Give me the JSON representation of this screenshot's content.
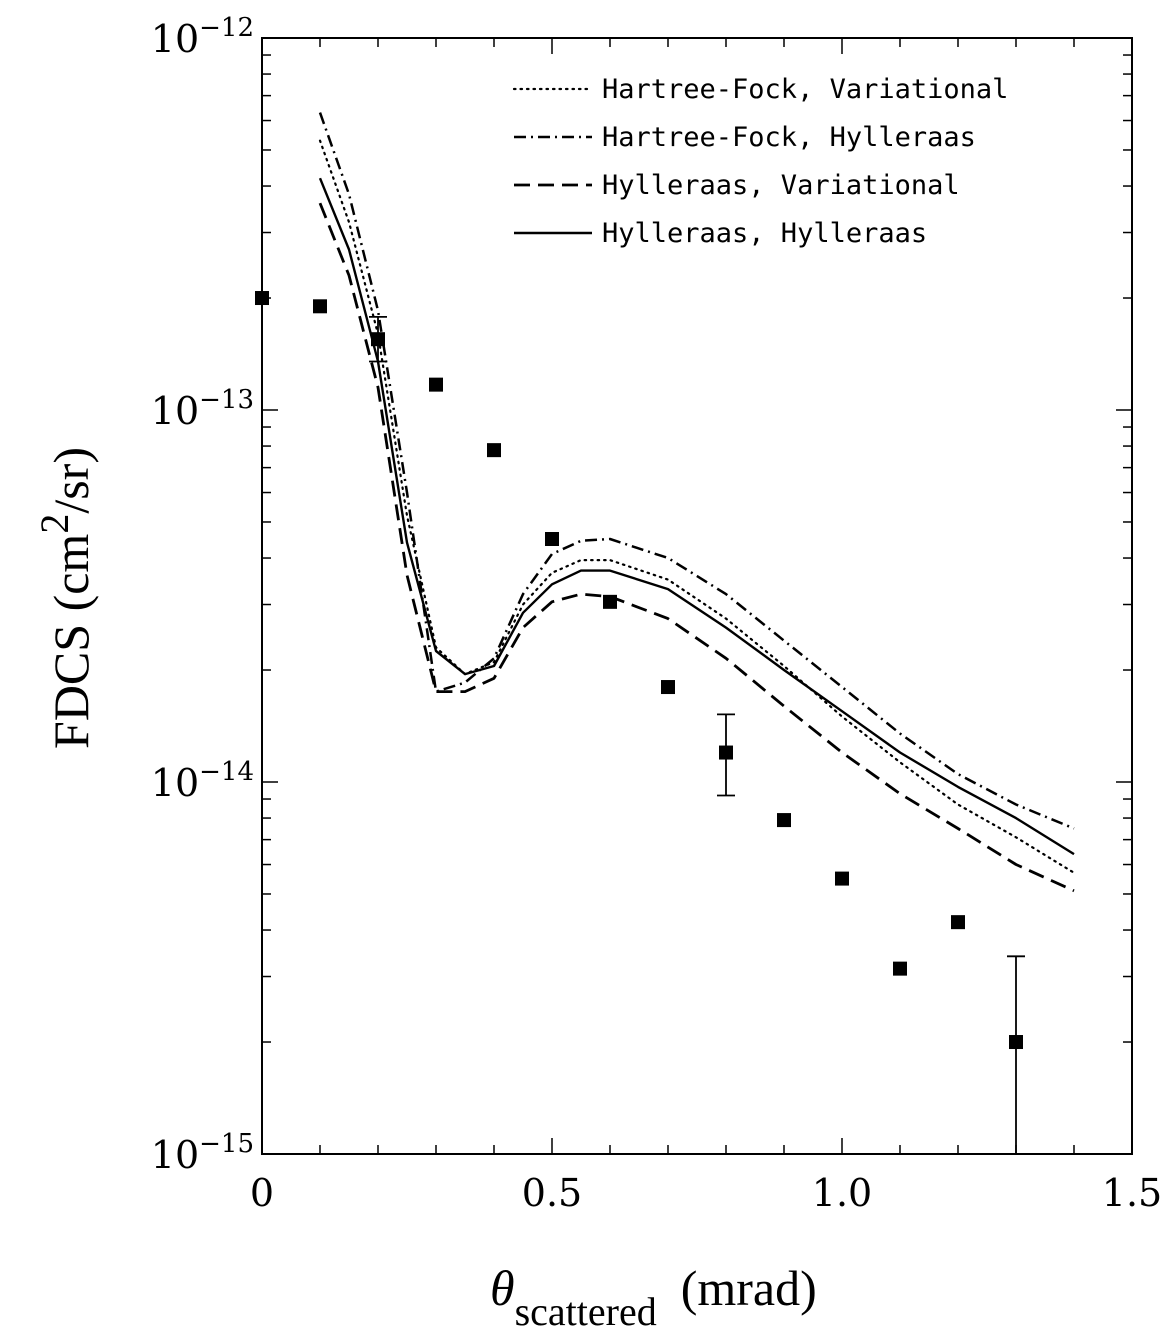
{
  "chart_data": {
    "type": "line",
    "xlabel": {
      "symbol": "θ",
      "subscript": "scattered",
      "unit": "(mrad)"
    },
    "ylabel": {
      "prefix": "FDCS (cm",
      "superscript": "2",
      "suffix": "/sr)"
    },
    "xlim": [
      0,
      1.5
    ],
    "ylim": [
      1e-15,
      1e-12
    ],
    "yscale": "log",
    "xticks": [
      {
        "value": 0,
        "label": "0"
      },
      {
        "value": 0.5,
        "label": "0.5"
      },
      {
        "value": 1.0,
        "label": "1.0"
      },
      {
        "value": 1.5,
        "label": "1.5"
      }
    ],
    "yticks": [
      {
        "value": 1e-15,
        "base": "10",
        "exp": "−15"
      },
      {
        "value": 1e-14,
        "base": "10",
        "exp": "−14"
      },
      {
        "value": 1e-13,
        "base": "10",
        "exp": "−13"
      },
      {
        "value": 1e-12,
        "base": "10",
        "exp": "−12"
      }
    ],
    "grid": false,
    "legend_position": "top-right",
    "series": [
      {
        "name": "Hartree-Fock, Variational",
        "dash": "dotted",
        "x": [
          0.1,
          0.15,
          0.2,
          0.25,
          0.3,
          0.35,
          0.4,
          0.45,
          0.5,
          0.55,
          0.6,
          0.7,
          0.8,
          0.9,
          1.0,
          1.1,
          1.2,
          1.3,
          1.4
        ],
        "y": [
          5.3e-13,
          3.2e-13,
          1.6e-13,
          5.2e-14,
          2.3e-14,
          1.95e-14,
          2.1e-14,
          3e-14,
          3.65e-14,
          3.95e-14,
          3.95e-14,
          3.5e-14,
          2.75e-14,
          2.05e-14,
          1.5e-14,
          1.13e-14,
          8.7e-15,
          7.1e-15,
          5.7e-15
        ]
      },
      {
        "name": "Hartree-Fock, Hylleraas",
        "dash": "dash-dot",
        "x": [
          0.1,
          0.15,
          0.2,
          0.25,
          0.3,
          0.35,
          0.4,
          0.45,
          0.5,
          0.55,
          0.6,
          0.7,
          0.8,
          0.9,
          1.0,
          1.1,
          1.2,
          1.3,
          1.4
        ],
        "y": [
          6.3e-13,
          3.8e-13,
          1.85e-13,
          6e-14,
          1.75e-14,
          1.85e-14,
          2.15e-14,
          3.2e-14,
          4.1e-14,
          4.45e-14,
          4.5e-14,
          4e-14,
          3.2e-14,
          2.4e-14,
          1.8e-14,
          1.35e-14,
          1.05e-14,
          8.7e-15,
          7.5e-15
        ]
      },
      {
        "name": "Hylleraas, Variational",
        "dash": "dashed",
        "x": [
          0.1,
          0.15,
          0.2,
          0.25,
          0.3,
          0.35,
          0.4,
          0.45,
          0.5,
          0.55,
          0.6,
          0.7,
          0.8,
          0.9,
          1.0,
          1.1,
          1.2,
          1.3,
          1.4
        ],
        "y": [
          3.6e-13,
          2.3e-13,
          1.15e-13,
          3.6e-14,
          1.75e-14,
          1.75e-14,
          1.9e-14,
          2.6e-14,
          3.05e-14,
          3.2e-14,
          3.15e-14,
          2.75e-14,
          2.15e-14,
          1.6e-14,
          1.2e-14,
          9.3e-15,
          7.5e-15,
          6e-15,
          5.1e-15
        ]
      },
      {
        "name": "Hylleraas, Hylleraas",
        "dash": "solid",
        "x": [
          0.1,
          0.15,
          0.2,
          0.25,
          0.3,
          0.35,
          0.4,
          0.45,
          0.5,
          0.55,
          0.6,
          0.7,
          0.8,
          0.9,
          1.0,
          1.1,
          1.2,
          1.3,
          1.4
        ],
        "y": [
          4.2e-13,
          2.7e-13,
          1.35e-13,
          4.4e-14,
          2.25e-14,
          1.95e-14,
          2.05e-14,
          2.85e-14,
          3.4e-14,
          3.7e-14,
          3.7e-14,
          3.3e-14,
          2.6e-14,
          2e-14,
          1.55e-14,
          1.2e-14,
          9.7e-15,
          8e-15,
          6.4e-15
        ]
      }
    ],
    "experimental": {
      "marker": "square",
      "points": [
        {
          "x": 0.0,
          "y": 2e-13
        },
        {
          "x": 0.1,
          "y": 1.9e-13
        },
        {
          "x": 0.2,
          "y": 1.55e-13,
          "err": [
            1.35e-13,
            1.78e-13
          ]
        },
        {
          "x": 0.3,
          "y": 1.17e-13
        },
        {
          "x": 0.4,
          "y": 7.8e-14
        },
        {
          "x": 0.5,
          "y": 4.5e-14
        },
        {
          "x": 0.6,
          "y": 3.05e-14
        },
        {
          "x": 0.7,
          "y": 1.8e-14
        },
        {
          "x": 0.8,
          "y": 1.2e-14,
          "err": [
            9.2e-15,
            1.52e-14
          ]
        },
        {
          "x": 0.9,
          "y": 7.9e-15
        },
        {
          "x": 1.0,
          "y": 5.5e-15
        },
        {
          "x": 1.1,
          "y": 3.15e-15
        },
        {
          "x": 1.2,
          "y": 4.2e-15
        },
        {
          "x": 1.3,
          "y": 2e-15,
          "err": [
            1e-15,
            3.4e-15
          ]
        }
      ]
    }
  }
}
